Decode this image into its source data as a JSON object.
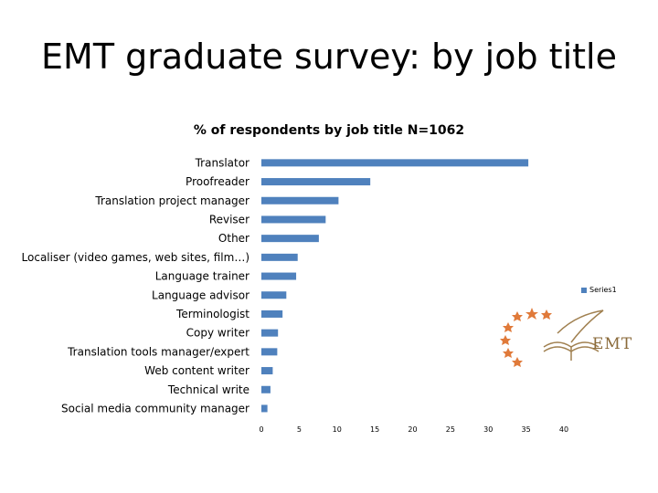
{
  "slide": {
    "title": "EMT graduate survey: by job title"
  },
  "logo": {
    "text": "EMT",
    "name": "emt-logo"
  },
  "chart_data": {
    "type": "bar",
    "orientation": "horizontal",
    "title": "% of respondents by job title N=1062",
    "categories": [
      "Translator",
      "Proofreader",
      "Translation project manager",
      "Reviser",
      "Other",
      "Localiser (video games, web sites, film…)",
      "Language trainer",
      "Language advisor",
      "Terminologist",
      "Copy writer",
      "Translation tools manager/expert",
      "Web content writer",
      "Technical write",
      "Social media community manager"
    ],
    "series": [
      {
        "name": "Series1",
        "values": [
          35.3,
          14.4,
          10.2,
          8.5,
          7.6,
          4.8,
          4.6,
          3.3,
          2.8,
          2.2,
          2.1,
          1.5,
          1.2,
          0.8
        ]
      }
    ],
    "xlim": [
      0,
      40
    ],
    "xticks": [
      0,
      5,
      10,
      15,
      20,
      25,
      30,
      35,
      40
    ],
    "color": "#4f81bd",
    "legend": "right",
    "grid": false
  }
}
